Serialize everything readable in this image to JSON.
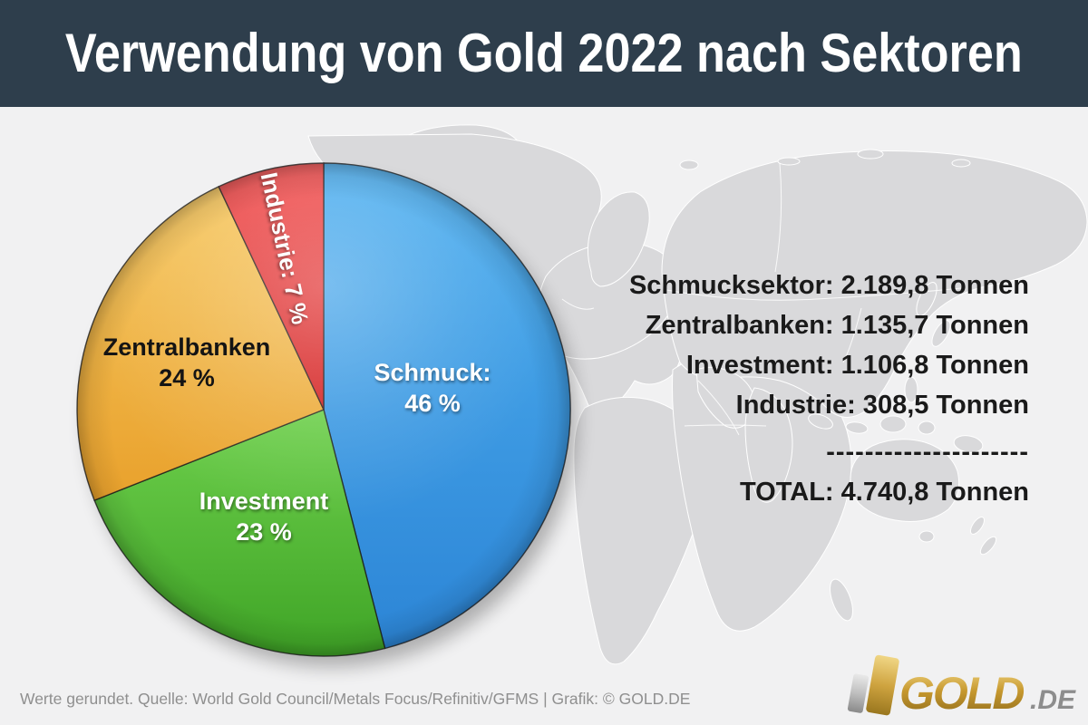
{
  "header": {
    "title": "Verwendung von Gold 2022 nach Sektoren",
    "background_color": "#2e3e4c",
    "text_color": "#ffffff"
  },
  "chart_data": {
    "type": "pie",
    "title": "Verwendung von Gold 2022 nach Sektoren",
    "unit": "Tonnen",
    "year": "2022",
    "start_angle_deg": 0,
    "direction": "clockwise",
    "slices": [
      {
        "name": "Schmuck",
        "label": "Schmuck:",
        "percent": 46,
        "percent_label": "46 %",
        "tonnes": 2189.8,
        "tonnes_label": "2.189,8 Tonnen",
        "color": "#389fe8",
        "color_top": "#4fb0f0",
        "color_bottom": "#2c85d6",
        "label_color": "#ffffff"
      },
      {
        "name": "Investment",
        "label": "Investment",
        "percent": 23,
        "percent_label": "23 %",
        "tonnes": 1106.8,
        "tonnes_label": "1.106,8 Tonnen",
        "color": "#55bd33",
        "color_top": "#6ed04c",
        "color_bottom": "#3fa426",
        "label_color": "#ffffff"
      },
      {
        "name": "Zentralbanken",
        "label": "Zentralbanken",
        "percent": 24,
        "percent_label": "24 %",
        "tonnes": 1135.7,
        "tonnes_label": "1.135,7 Tonnen",
        "color": "#f0b243",
        "color_top": "#f6c75f",
        "color_bottom": "#e9a12c",
        "label_color": "#141414"
      },
      {
        "name": "Industrie",
        "label": "Industrie:",
        "percent": 7,
        "percent_label": "7 %",
        "tonnes": 308.5,
        "tonnes_label": "308,5 Tonnen",
        "color": "#e63333",
        "color_top": "#f25050",
        "color_bottom": "#d32222",
        "label_color": "#ffffff"
      }
    ],
    "total_tonnes": 4740.8,
    "total_label": "TOTAL: 4.740,8 Tonnen",
    "legend_position": "labels-on-slices",
    "background_map_color": "#d9d9db"
  },
  "side_panel": {
    "lines": [
      "Schmucksektor: 2.189,8 Tonnen",
      "Zentralbanken: 1.135,7 Tonnen",
      "Investment: 1.106,8 Tonnen",
      "Industrie: 308,5 Tonnen"
    ],
    "divider": "---------------------",
    "total": "TOTAL: 4.740,8 Tonnen"
  },
  "footer": {
    "source": "Werte gerundet. Quelle: World Gold Council/Metals Focus/Refinitiv/GFMS  |  Grafik: © GOLD.DE",
    "logo": {
      "text": "GOLD",
      "suffix": ".DE",
      "gold_color": "#c7992f",
      "silver_color": "#bfbfbf",
      "suffix_color": "#8d8d8d"
    }
  }
}
